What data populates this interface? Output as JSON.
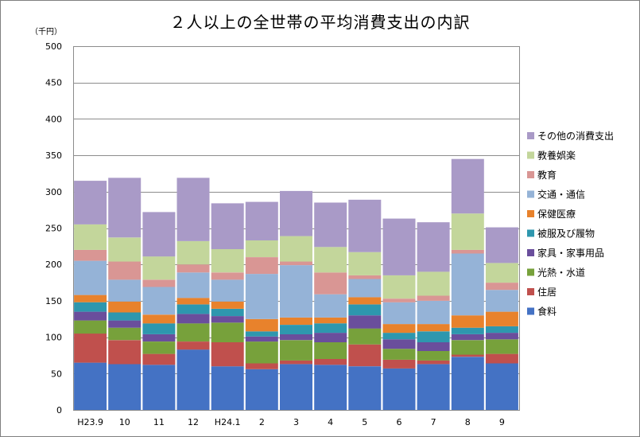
{
  "chart_data": {
    "type": "bar",
    "stacked": true,
    "title": "２人以上の全世帯の平均消費支出の内訳",
    "unit_label": "（千円）",
    "ylim": [
      0,
      500
    ],
    "yticks": [
      0,
      50,
      100,
      150,
      200,
      250,
      300,
      350,
      400,
      450,
      500
    ],
    "grid": true,
    "legend_position": "right",
    "categories": [
      "H23.9",
      "10",
      "11",
      "12",
      "H24.1",
      "2",
      "3",
      "4",
      "5",
      "6",
      "7",
      "8",
      "9"
    ],
    "series": [
      {
        "name": "食料",
        "color": "#4472C4",
        "values": [
          65,
          63,
          62,
          83,
          60,
          56,
          63,
          62,
          60,
          57,
          63,
          73,
          64
        ]
      },
      {
        "name": "住居",
        "color": "#C0504D",
        "values": [
          40,
          33,
          15,
          11,
          33,
          8,
          5,
          8,
          30,
          12,
          5,
          3,
          13
        ]
      },
      {
        "name": "光熱・水道",
        "color": "#77A13B",
        "values": [
          18,
          17,
          17,
          25,
          27,
          30,
          28,
          23,
          22,
          15,
          13,
          20,
          20
        ]
      },
      {
        "name": "家具・家事用品",
        "color": "#6A4E9C",
        "values": [
          12,
          10,
          10,
          13,
          9,
          7,
          8,
          13,
          18,
          13,
          12,
          8,
          9
        ]
      },
      {
        "name": "被服及び履物",
        "color": "#2E97AE",
        "values": [
          13,
          11,
          15,
          13,
          10,
          7,
          13,
          13,
          15,
          9,
          15,
          9,
          9
        ]
      },
      {
        "name": "保健医療",
        "color": "#E8822C",
        "values": [
          10,
          15,
          12,
          9,
          10,
          17,
          10,
          8,
          10,
          12,
          10,
          17,
          20
        ]
      },
      {
        "name": "交通・通信",
        "color": "#95B3D7",
        "values": [
          47,
          30,
          38,
          35,
          30,
          62,
          72,
          32,
          25,
          30,
          32,
          85,
          30
        ]
      },
      {
        "name": "教育",
        "color": "#D99694",
        "values": [
          15,
          25,
          10,
          11,
          10,
          23,
          5,
          30,
          5,
          5,
          7,
          5,
          10
        ]
      },
      {
        "name": "教養娯楽",
        "color": "#C3D69B",
        "values": [
          35,
          33,
          32,
          32,
          32,
          23,
          35,
          35,
          32,
          32,
          33,
          50,
          27
        ]
      },
      {
        "name": "その他の消費支出",
        "color": "#A99AC7",
        "values": [
          60,
          82,
          61,
          87,
          63,
          53,
          62,
          61,
          72,
          78,
          68,
          75,
          49
        ]
      }
    ]
  }
}
